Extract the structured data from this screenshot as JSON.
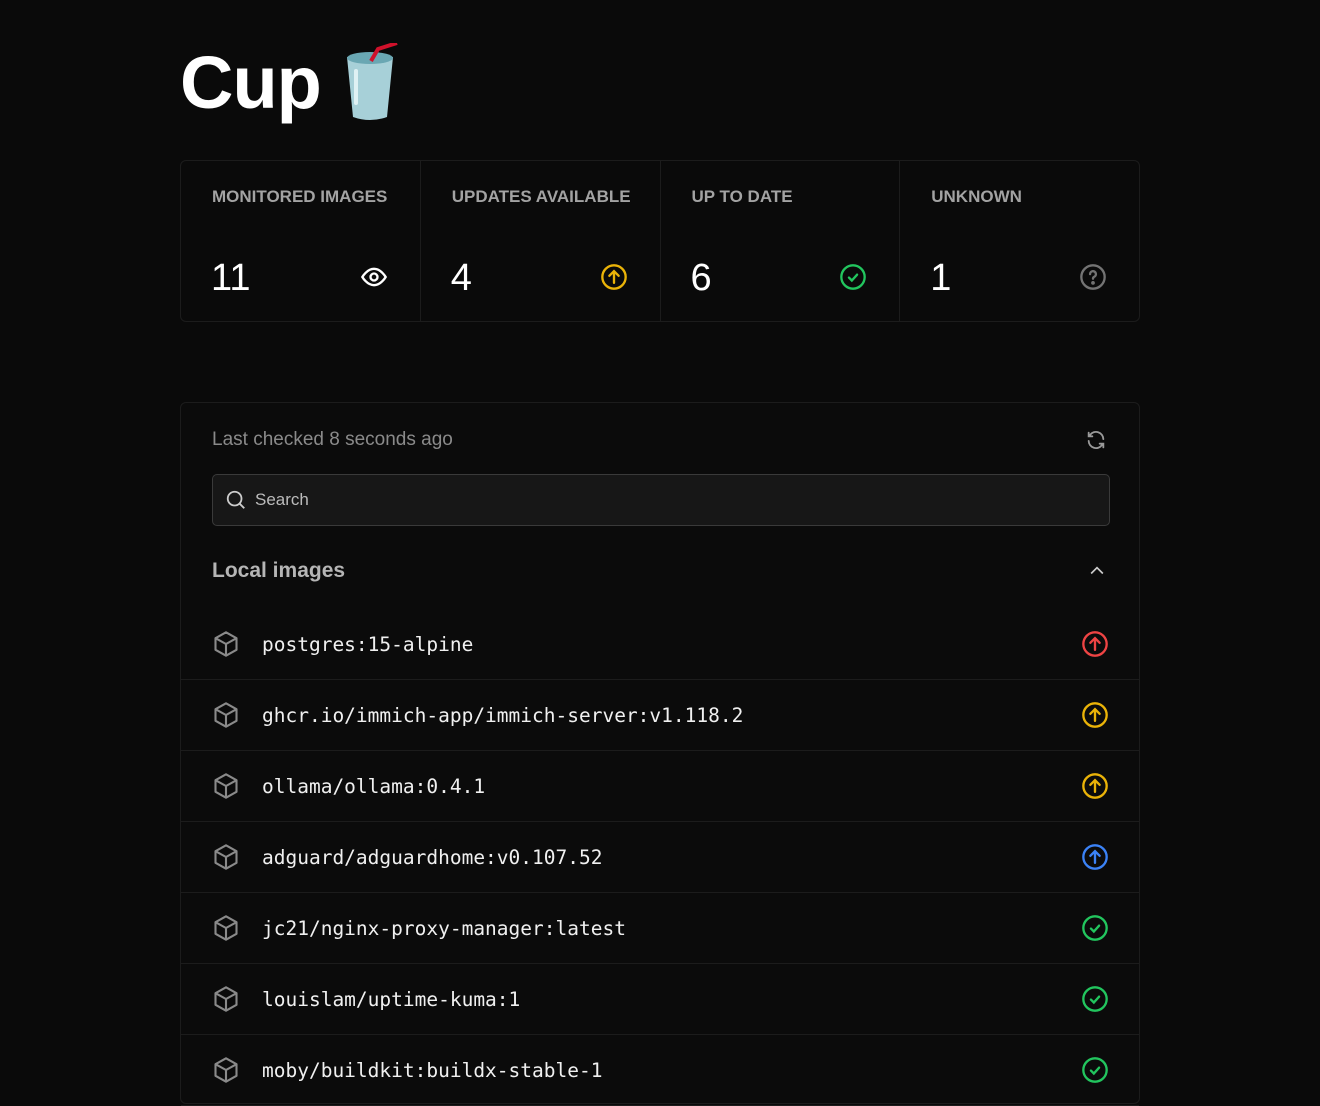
{
  "header": {
    "title": "Cup",
    "logo": "cup-with-straw-emoji"
  },
  "stats": [
    {
      "label": "MONITORED IMAGES",
      "value": "11",
      "icon": "eye-icon",
      "color": "#ffffff"
    },
    {
      "label": "UPDATES AVAILABLE",
      "value": "4",
      "icon": "arrow-up-circle-icon",
      "color": "#eab308"
    },
    {
      "label": "UP TO DATE",
      "value": "6",
      "icon": "check-circle-icon",
      "color": "#22c55e"
    },
    {
      "label": "UNKNOWN",
      "value": "1",
      "icon": "question-circle-icon",
      "color": "#737373"
    }
  ],
  "list": {
    "last_checked": "Last checked 8 seconds ago",
    "search_placeholder": "Search",
    "section_title": "Local images",
    "images": [
      {
        "name": "postgres:15-alpine",
        "status": "update",
        "color": "#ef4444"
      },
      {
        "name": "ghcr.io/immich-app/immich-server:v1.118.2",
        "status": "update",
        "color": "#eab308"
      },
      {
        "name": "ollama/ollama:0.4.1",
        "status": "update",
        "color": "#eab308"
      },
      {
        "name": "adguard/adguardhome:v0.107.52",
        "status": "update",
        "color": "#3b82f6"
      },
      {
        "name": "jc21/nginx-proxy-manager:latest",
        "status": "up-to-date",
        "color": "#22c55e"
      },
      {
        "name": "louislam/uptime-kuma:1",
        "status": "up-to-date",
        "color": "#22c55e"
      },
      {
        "name": "moby/buildkit:buildx-stable-1",
        "status": "up-to-date",
        "color": "#22c55e"
      }
    ]
  }
}
